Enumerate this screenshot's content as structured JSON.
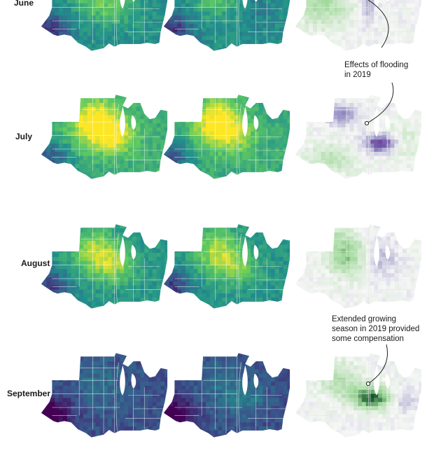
{
  "rows": [
    {
      "label": "June"
    },
    {
      "label": "July"
    },
    {
      "label": "August"
    },
    {
      "label": "September"
    }
  ],
  "palettes": {
    "viridis": [
      "#440154",
      "#3b528b",
      "#21918c",
      "#5ec962",
      "#fde725"
    ],
    "difference": [
      "#3f007d",
      "#9e9ac8",
      "#f7f7f7",
      "#a1d99b",
      "#00441b"
    ]
  },
  "annotations": [
    {
      "text_lines": [
        "Effects of flooding",
        "in 2019"
      ]
    },
    {
      "text_lines": [
        "Extended growing",
        "season in 2019 provided",
        "some compensation"
      ]
    }
  ]
}
